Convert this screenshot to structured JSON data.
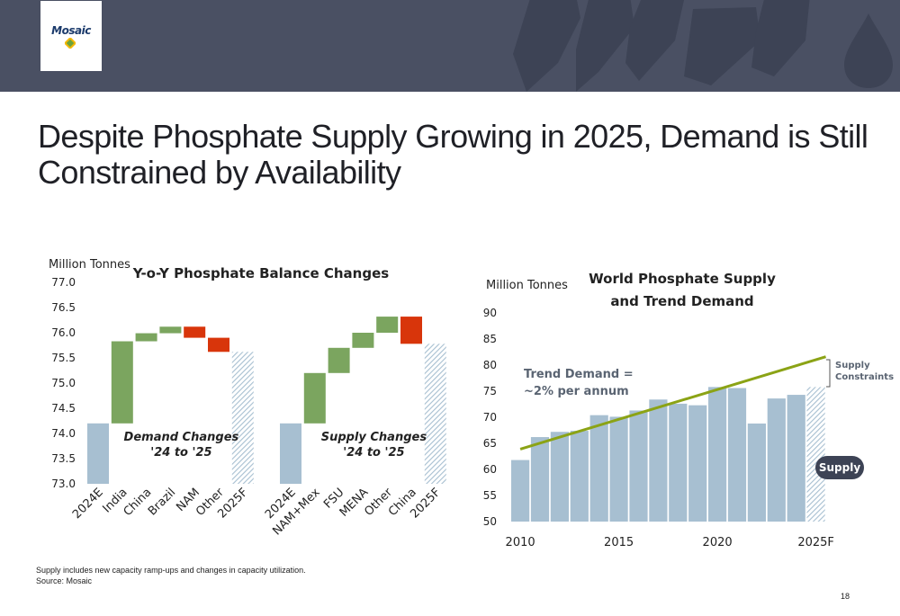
{
  "header": {
    "logo_text": "Mosaic",
    "title": "Despite Phosphate Supply Growing in 2025, Demand is Still Constrained by Availability"
  },
  "colors": {
    "banner": "#4a5063",
    "shapes": "#3d4355",
    "base_bar": "#a7bfd1",
    "increase": "#7ba55f",
    "decrease": "#d8350b",
    "trend_line": "#8ba315",
    "annotation_text": "#5a6472"
  },
  "chart_data": [
    {
      "type": "waterfall",
      "title": "Y-o-Y Phosphate Balance Changes",
      "ylabel": "Million Tonnes",
      "ylim": [
        73.0,
        77.0
      ],
      "yticks": [
        "73.0",
        "73.5",
        "74.0",
        "74.5",
        "75.0",
        "75.5",
        "76.0",
        "76.5",
        "77.0"
      ],
      "groups": [
        {
          "label": "Demand Changes\n'24 to '25",
          "bars": [
            {
              "category": "2024E",
              "kind": "base",
              "value": 74.2
            },
            {
              "category": "India",
              "kind": "increase",
              "start": 74.2,
              "end": 75.83
            },
            {
              "category": "China",
              "kind": "increase",
              "start": 75.83,
              "end": 75.99
            },
            {
              "category": "Brazil",
              "kind": "increase",
              "start": 75.99,
              "end": 76.12
            },
            {
              "category": "NAM",
              "kind": "decrease",
              "start": 76.12,
              "end": 75.9
            },
            {
              "category": "Other",
              "kind": "decrease",
              "start": 75.9,
              "end": 75.62
            },
            {
              "category": "2025F",
              "kind": "forecast",
              "value": 75.62
            }
          ]
        },
        {
          "label": "Supply Changes\n'24 to '25",
          "bars": [
            {
              "category": "2024E",
              "kind": "base",
              "value": 74.2
            },
            {
              "category": "NAM+Mex",
              "kind": "increase",
              "start": 74.2,
              "end": 75.2
            },
            {
              "category": "FSU",
              "kind": "increase",
              "start": 75.2,
              "end": 75.7
            },
            {
              "category": "MENA",
              "kind": "increase",
              "start": 75.7,
              "end": 76.0
            },
            {
              "category": "Other",
              "kind": "increase",
              "start": 76.0,
              "end": 76.32
            },
            {
              "category": "China",
              "kind": "decrease",
              "start": 76.32,
              "end": 75.78
            },
            {
              "category": "2025F",
              "kind": "forecast",
              "value": 75.78
            }
          ]
        }
      ]
    },
    {
      "type": "bar",
      "title": "World Phosphate Supply\nand Trend Demand",
      "ylabel": "Million Tonnes",
      "ylim": [
        50,
        90
      ],
      "yticks": [
        "50",
        "55",
        "60",
        "65",
        "70",
        "75",
        "80",
        "85",
        "90"
      ],
      "x": [
        2010,
        2011,
        2012,
        2013,
        2014,
        2015,
        2016,
        2017,
        2018,
        2019,
        2020,
        2021,
        2022,
        2023,
        2024,
        2025
      ],
      "x_tick_labels": [
        {
          "x": 2010,
          "label": "2010"
        },
        {
          "x": 2015,
          "label": "2015"
        },
        {
          "x": 2020,
          "label": "2020"
        },
        {
          "x": 2025,
          "label": "2025F"
        }
      ],
      "series": [
        {
          "name": "Supply",
          "values": [
            61.8,
            66.2,
            67.2,
            67.4,
            70.4,
            70.1,
            71.3,
            73.4,
            72.6,
            72.3,
            75.8,
            75.6,
            68.8,
            73.6,
            74.3,
            75.8
          ],
          "forecast_last": true
        }
      ],
      "trend_line": {
        "x": [
          2010,
          2025.5
        ],
        "y": [
          63.9,
          81.6
        ]
      },
      "annotations": {
        "trend": "Trend Demand =\n~2% per annum",
        "bracket": "Supply\nConstraints",
        "badge": "Supply"
      }
    }
  ],
  "footnote": {
    "line1": "Supply includes new capacity ramp-ups and changes in capacity utilization.",
    "line2": "Source: Mosaic"
  },
  "page_number": "18"
}
